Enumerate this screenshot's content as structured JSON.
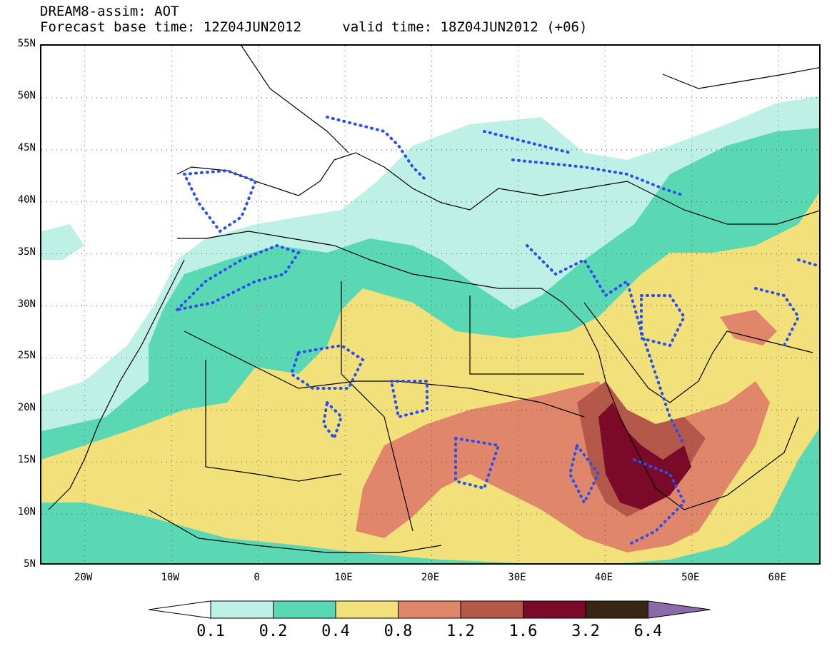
{
  "title": {
    "line1": "DREAM8-assim: AOT",
    "line2_base": "Forecast base time: 12Z04JUN2012",
    "line2_valid": "valid time: 18Z04JUN2012 (+06)"
  },
  "map": {
    "lon_range": [
      -25,
      65
    ],
    "lat_range": [
      5,
      55
    ],
    "lat_ticks": [
      "55N",
      "50N",
      "45N",
      "40N",
      "35N",
      "30N",
      "25N",
      "20N",
      "15N",
      "10N",
      "5N"
    ],
    "lon_ticks": [
      "20W",
      "10W",
      "0",
      "10E",
      "20E",
      "30E",
      "40E",
      "50E",
      "60E"
    ],
    "grid": "dotted"
  },
  "colorbar": {
    "levels": [
      "0.1",
      "0.2",
      "0.4",
      "0.8",
      "1.2",
      "1.6",
      "3.2",
      "6.4"
    ],
    "colors": [
      "#bff0e6",
      "#5ad8b4",
      "#f2e07a",
      "#e0866a",
      "#b4584a",
      "#7a0a28",
      "#3a2414",
      "#8a6aa8"
    ],
    "under_color": "#ffffff"
  },
  "legend_contour_color": "#2a4ef0"
}
